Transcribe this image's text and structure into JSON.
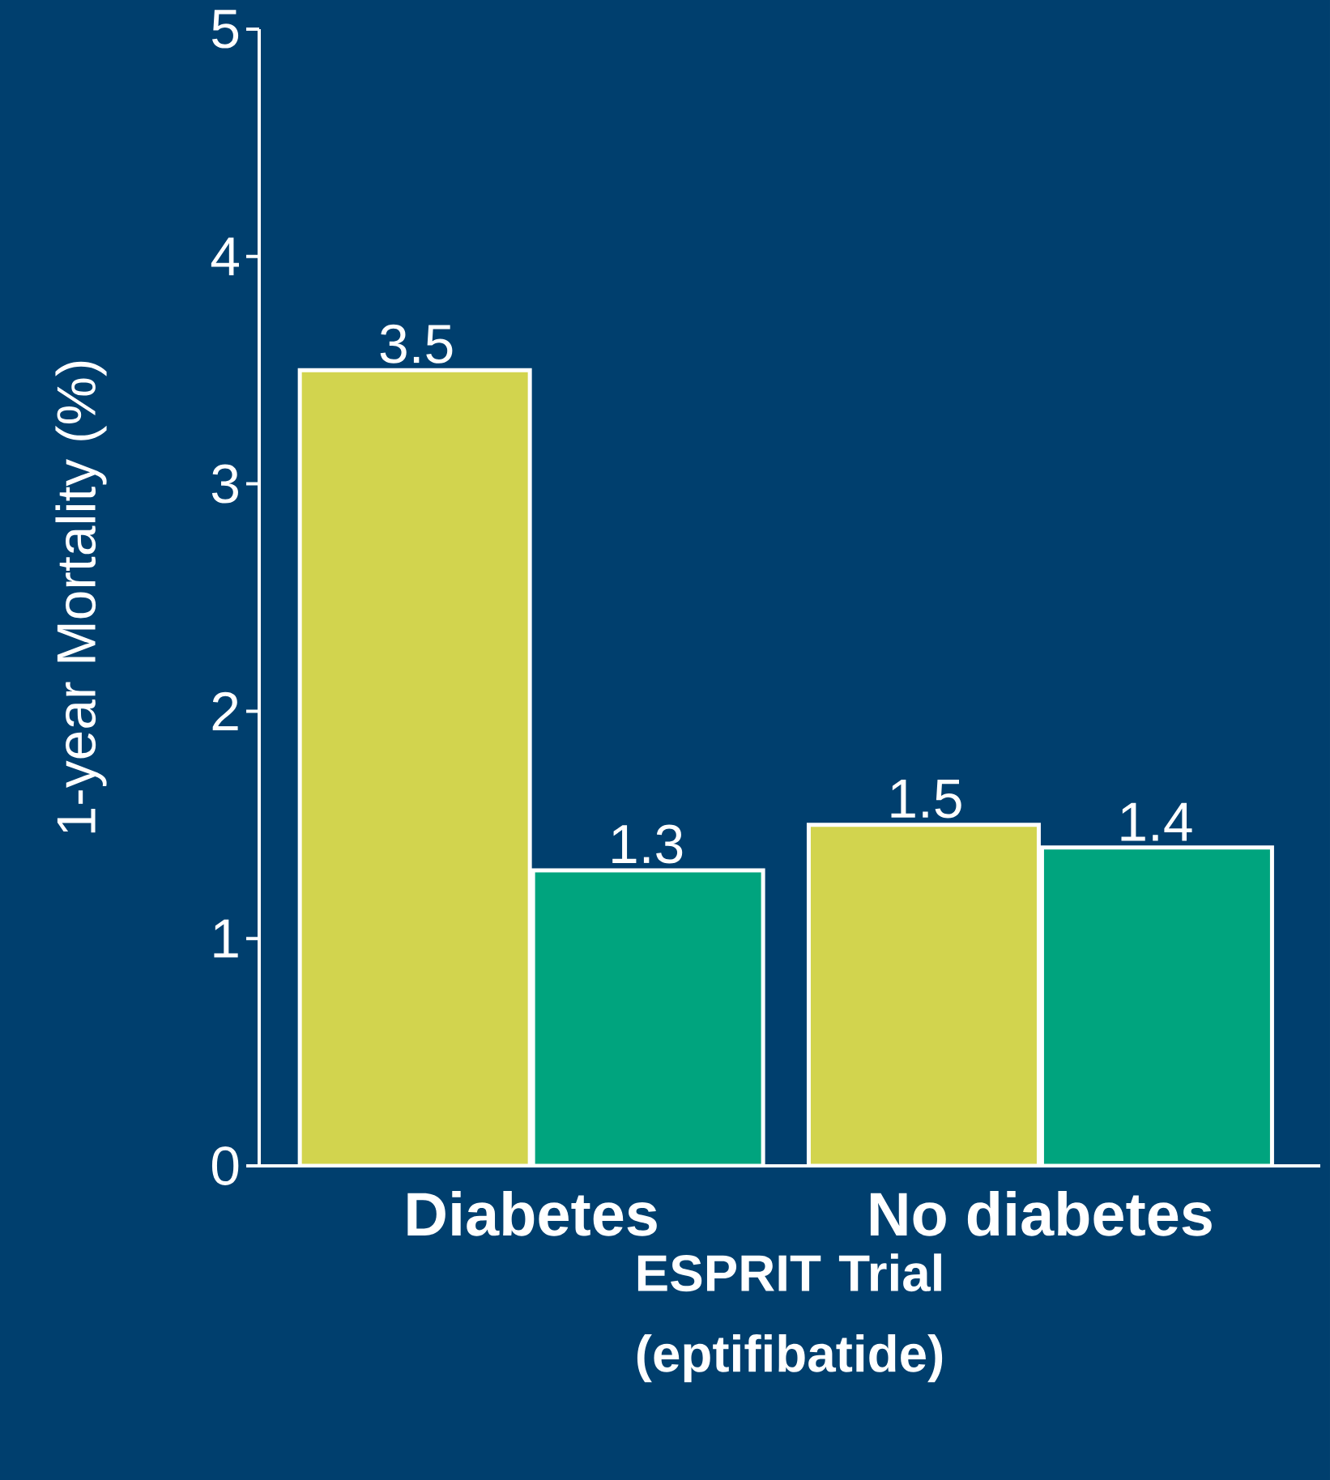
{
  "chart_data": {
    "type": "bar",
    "ylabel": "1-year Mortality (%)",
    "xlabel": "ESPRIT Trial (eptifibatide)",
    "categories": [
      "Diabetes",
      "No diabetes"
    ],
    "series": [
      {
        "color": "#d2d44e",
        "values": [
          3.5,
          1.5
        ]
      },
      {
        "color": "#00a47e",
        "values": [
          1.3,
          1.4
        ]
      }
    ],
    "ylim": [
      0,
      5
    ],
    "yticks": [
      0,
      1,
      2,
      3,
      4,
      5
    ],
    "grid": false,
    "data_labels": true
  }
}
